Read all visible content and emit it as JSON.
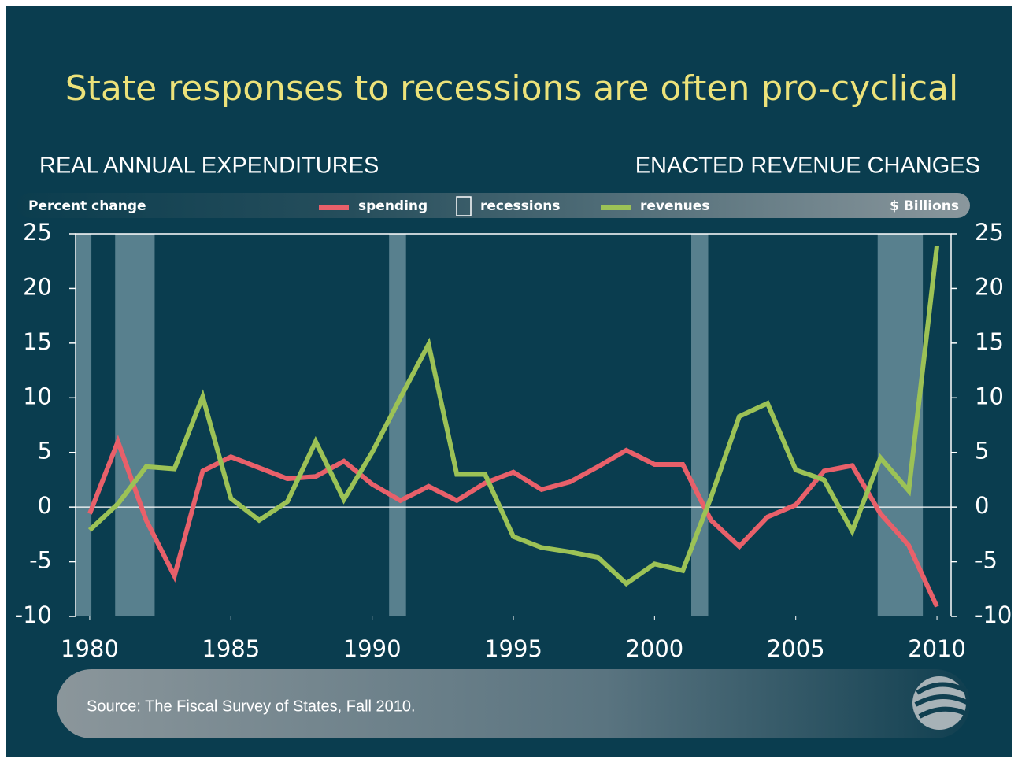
{
  "chart_data": {
    "type": "line",
    "title": "State responses to recessions are often pro-cyclical",
    "left_subtitle": "REAL ANNUAL EXPENDITURES",
    "right_subtitle": "ENACTED REVENUE CHANGES",
    "ylabel": "Percent change",
    "y2label": "$ Billions",
    "source": "Source:  The Fiscal Survey of States, Fall 2010.",
    "x": [
      1980,
      1981,
      1982,
      1983,
      1984,
      1985,
      1986,
      1987,
      1988,
      1989,
      1990,
      1991,
      1992,
      1993,
      1994,
      1995,
      1996,
      1997,
      1998,
      1999,
      2000,
      2001,
      2002,
      2003,
      2004,
      2005,
      2006,
      2007,
      2008,
      2009,
      2010
    ],
    "series": [
      {
        "name": "spending",
        "color": "#e8606a",
        "values": [
          -0.6,
          6.0,
          -1.2,
          -6.3,
          3.3,
          4.6,
          3.6,
          2.6,
          2.8,
          4.2,
          2.1,
          0.6,
          1.9,
          0.6,
          2.2,
          3.2,
          1.6,
          2.3,
          3.7,
          5.2,
          3.9,
          3.9,
          -1.2,
          -3.6,
          -0.9,
          0.2,
          3.3,
          3.8,
          -0.6,
          -3.5,
          -9.1
        ]
      },
      {
        "name": "revenues",
        "color": "#9cc256",
        "axis": "y2",
        "values": [
          -2.1,
          0.3,
          3.7,
          3.5,
          10.1,
          0.8,
          -1.2,
          0.5,
          6.0,
          0.7,
          5.0,
          10.0,
          14.9,
          3.0,
          3.0,
          -2.7,
          -3.7,
          -4.1,
          -4.6,
          -7.0,
          -5.2,
          -5.8,
          0.9,
          8.3,
          9.5,
          3.4,
          2.5,
          -2.2,
          4.5,
          1.5,
          23.9
        ]
      }
    ],
    "recessions": {
      "name": "recessions",
      "color": "#58808e",
      "spans": [
        [
          1979.5,
          1980.06
        ],
        [
          1980.9,
          1982.3
        ],
        [
          1990.6,
          1991.2
        ],
        [
          2001.3,
          2001.9
        ],
        [
          2007.9,
          2009.5
        ]
      ]
    },
    "xlim": [
      1979.5,
      2010.5
    ],
    "xticks": [
      1980,
      1985,
      1990,
      1995,
      2000,
      2005,
      2010
    ],
    "ylim": [
      -10,
      25
    ],
    "yticks": [
      -10,
      -5,
      0,
      5,
      10,
      15,
      20,
      25
    ],
    "y2lim": [
      -10,
      25
    ],
    "y2ticks": [
      -10,
      -5,
      0,
      5,
      10,
      15,
      20,
      25
    ]
  }
}
